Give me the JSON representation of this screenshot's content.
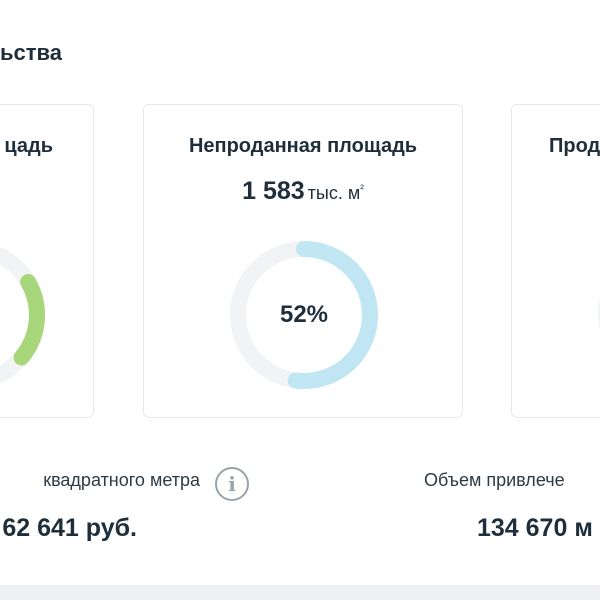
{
  "section": {
    "title": "ьства"
  },
  "cards": {
    "left": {
      "title": "цадь",
      "color": "#a8d67a"
    },
    "middle": {
      "title": "Непроданная площадь",
      "value": "1 583",
      "unit": "тыс. м",
      "unit_sup": "²",
      "percent": 52,
      "percent_label": "52%",
      "color": "#bfe6f2",
      "track_color": "#f1f3f5"
    },
    "right": {
      "title": "Прод"
    }
  },
  "stats": {
    "left": {
      "label": "квадратного метра",
      "value": "62 641 руб."
    },
    "right": {
      "label": "Объем привлече",
      "value": "134 670 м"
    }
  }
}
